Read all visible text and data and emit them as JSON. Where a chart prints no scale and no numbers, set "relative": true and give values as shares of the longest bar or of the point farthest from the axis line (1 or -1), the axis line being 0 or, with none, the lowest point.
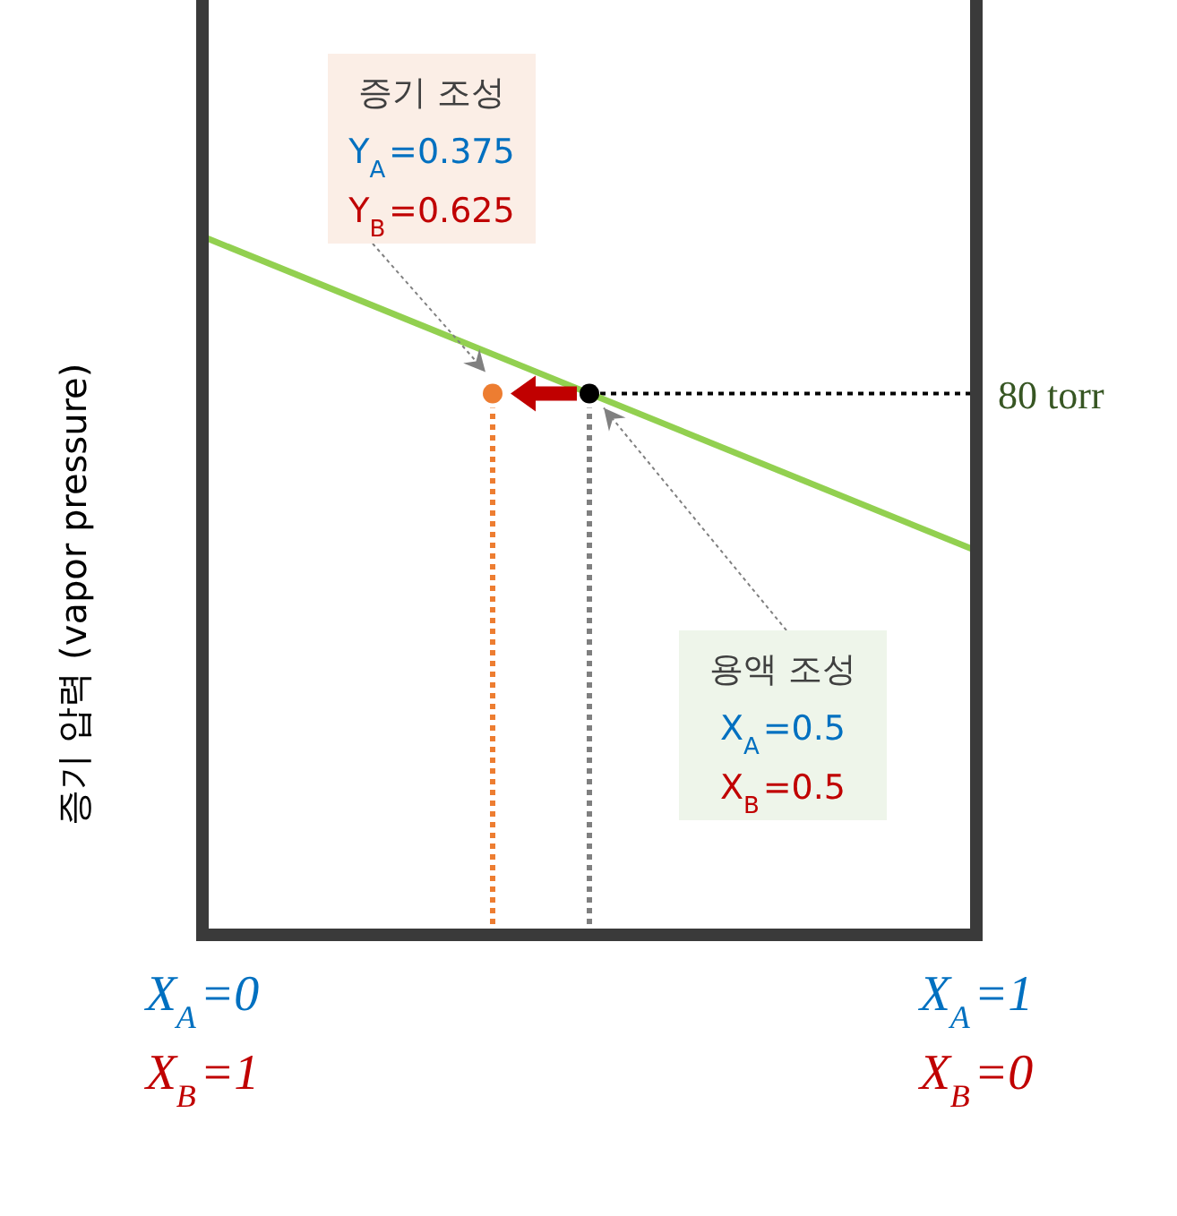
{
  "chart_data": {
    "type": "line",
    "ylabel": "증기 압력 (vapor pressure)",
    "xlim": [
      0,
      1
    ],
    "xticks": [
      {
        "value": 0,
        "label": "X$_{A}$=0"
      },
      {
        "value": 1,
        "label": "X$_{A}$=1"
      }
    ],
    "x2lim": [
      1,
      0
    ],
    "x2ticks": [
      {
        "value": 1,
        "label": "X$_{B}$=1"
      },
      {
        "value": 0,
        "label": "X$_{B}$=0"
      }
    ],
    "relative": true,
    "series": [
      {
        "color": "#92d050",
        "x": [
          0,
          1
        ],
        "values": [
          1,
          0.55
        ]
      },
      {
        "type": "scatter",
        "marker": "circle",
        "color": "#000000",
        "x": [
          0.5
        ],
        "values": [
          0.775
        ]
      },
      {
        "type": "scatter",
        "marker": "circle",
        "color": "#ed7d31",
        "x": [
          0.375
        ],
        "values": [
          0.775
        ]
      }
    ],
    "ref_lines": [
      {
        "axis": "y",
        "value": 0.775,
        "label": "80 torr",
        "color": "#000000",
        "line_style": "dotted"
      },
      {
        "axis": "x",
        "value": 0.5,
        "color": "#7f7f7f",
        "line_style": "dotted"
      },
      {
        "axis": "x",
        "value": 0.375,
        "color": "#ed7d31",
        "line_style": "dotted"
      }
    ],
    "annotations": [
      "증기 조성\nY$_{A}$=0.375\nY$_{B}$=0.625",
      "용액 조성\nX$_{A}$=0.5\nX$_{B}$=0.5"
    ]
  }
}
